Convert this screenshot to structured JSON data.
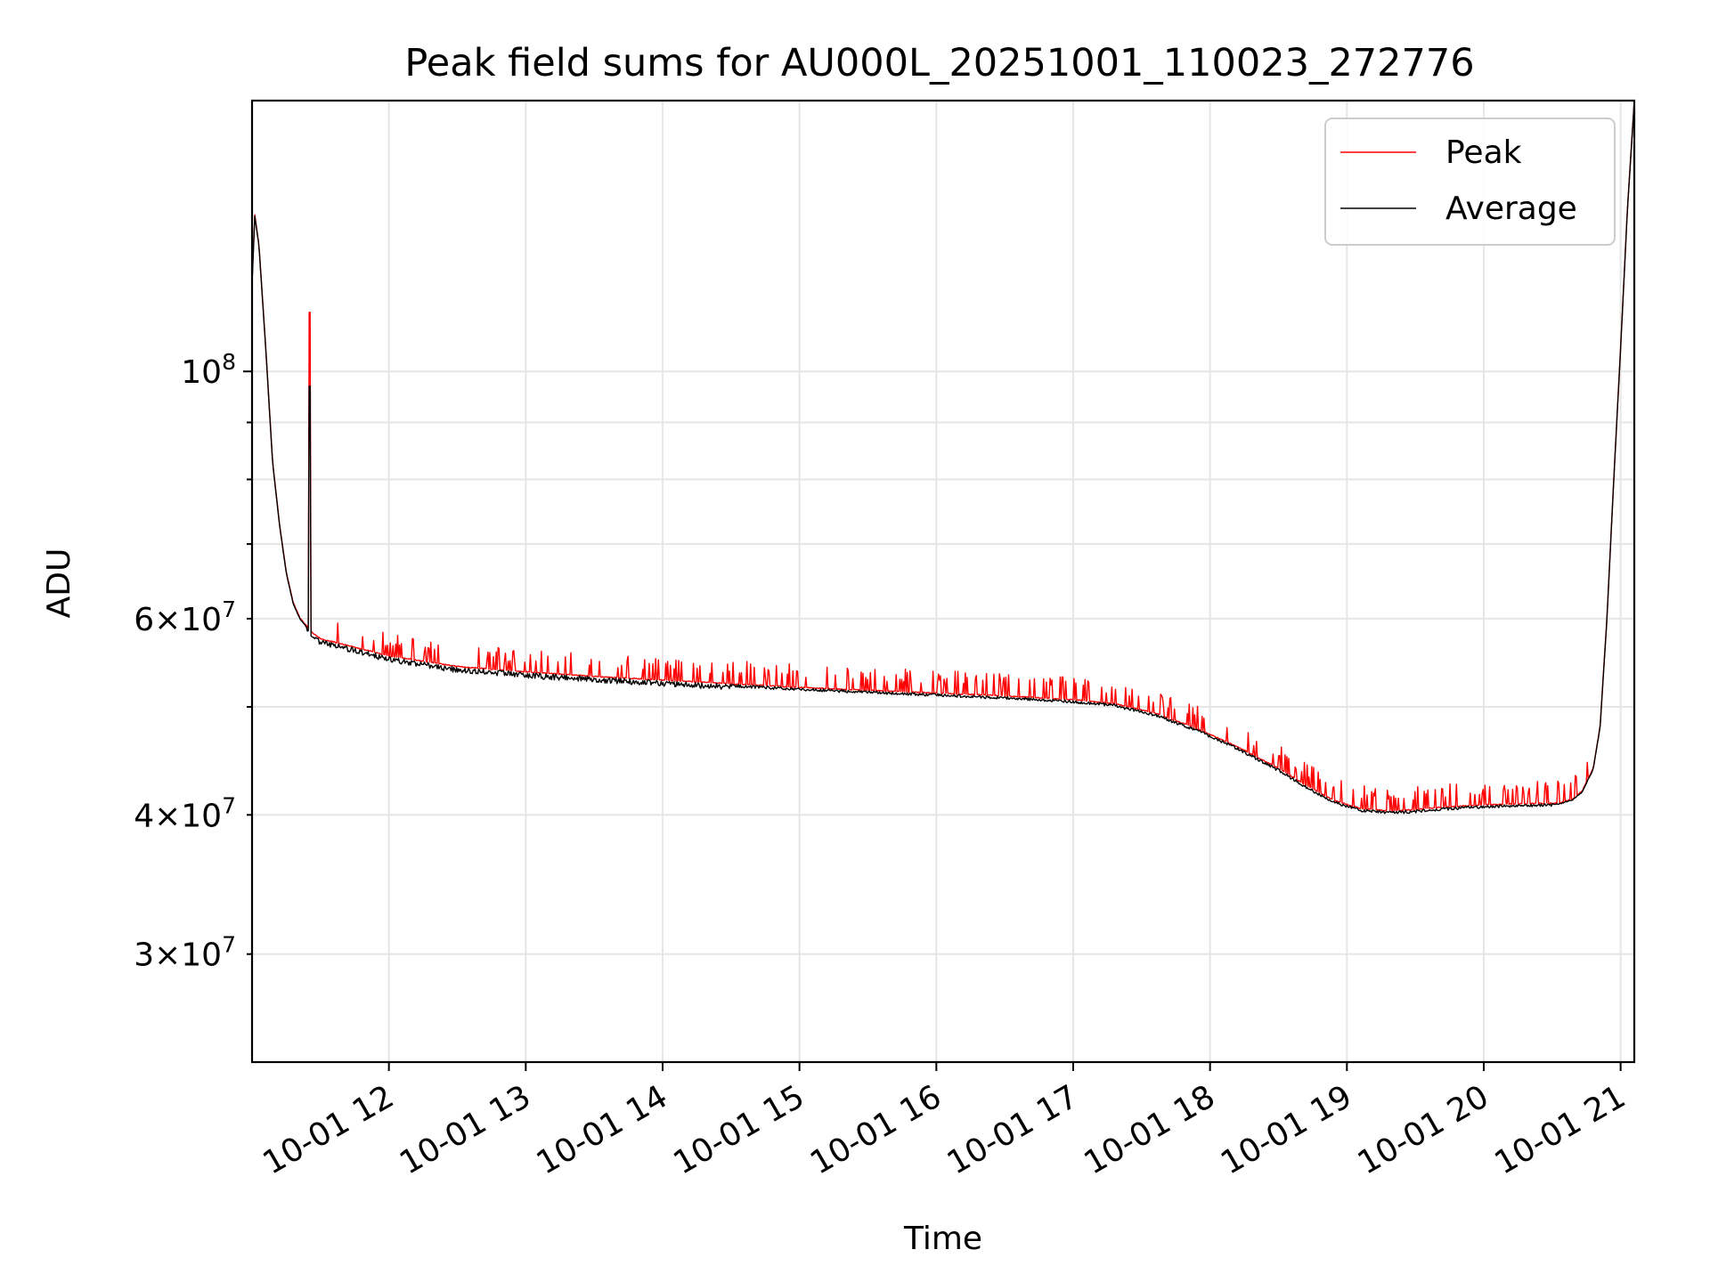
{
  "chart_data": {
    "type": "line",
    "title": "Peak field sums for AU000L_20251001_110023_272776",
    "xlabel": "Time",
    "ylabel": "ADU",
    "yscale": "log",
    "ylim": [
      24000000,
      175000000
    ],
    "xlim_hours": [
      11.0,
      21.1
    ],
    "grid": true,
    "legend_position": "top-right",
    "x_ticks": [
      {
        "value": 12,
        "label": "10-01 12"
      },
      {
        "value": 13,
        "label": "10-01 13"
      },
      {
        "value": 14,
        "label": "10-01 14"
      },
      {
        "value": 15,
        "label": "10-01 15"
      },
      {
        "value": 16,
        "label": "10-01 16"
      },
      {
        "value": 17,
        "label": "10-01 17"
      },
      {
        "value": 18,
        "label": "10-01 18"
      },
      {
        "value": 19,
        "label": "10-01 19"
      },
      {
        "value": 20,
        "label": "10-01 20"
      },
      {
        "value": 21,
        "label": "10-01 21"
      }
    ],
    "y_ticks_major": [
      {
        "value": 100000000,
        "base": "10",
        "exp": "8"
      }
    ],
    "y_ticks_minor": [
      {
        "value": 30000000,
        "mantissa": "3",
        "base": "10",
        "exp": "7"
      },
      {
        "value": 40000000,
        "mantissa": "4",
        "base": "10",
        "exp": "7"
      },
      {
        "value": 60000000,
        "mantissa": "6",
        "base": "10",
        "exp": "7"
      }
    ],
    "y_ticks_unlabeled": [
      50000000,
      70000000,
      80000000,
      90000000
    ],
    "series": [
      {
        "name": "Peak",
        "color": "#ff0000"
      },
      {
        "name": "Average",
        "color": "#000000"
      }
    ],
    "average_baseline": {
      "x": [
        11.0,
        11.02,
        11.05,
        11.1,
        11.15,
        11.2,
        11.25,
        11.3,
        11.35,
        11.4,
        11.42,
        11.5,
        11.75,
        12.0,
        12.5,
        13.0,
        13.5,
        14.0,
        14.5,
        15.0,
        15.5,
        16.0,
        16.5,
        17.0,
        17.3,
        17.6,
        17.9,
        18.2,
        18.5,
        18.7,
        18.9,
        19.1,
        19.3,
        19.5,
        19.7,
        20.0,
        20.3,
        20.55,
        20.65,
        20.72,
        20.8,
        20.85,
        20.9,
        20.95,
        21.0,
        21.05,
        21.1
      ],
      "values": [
        120000000,
        138000000,
        130000000,
        105000000,
        83000000,
        73000000,
        66000000,
        62000000,
        60000000,
        59000000,
        58500000,
        57500000,
        56500000,
        55500000,
        54300000,
        53700000,
        53200000,
        52800000,
        52400000,
        52000000,
        51700000,
        51400000,
        51100000,
        50700000,
        50300000,
        49300000,
        47800000,
        46000000,
        44000000,
        42500000,
        41200000,
        40500000,
        40300000,
        40400000,
        40600000,
        40800000,
        40900000,
        40950000,
        41300000,
        42000000,
        44000000,
        48000000,
        60000000,
        80000000,
        105000000,
        140000000,
        175000000
      ]
    },
    "spikes": [
      {
        "x": 11.42,
        "peak": 113000000,
        "average": 97000000
      }
    ]
  }
}
